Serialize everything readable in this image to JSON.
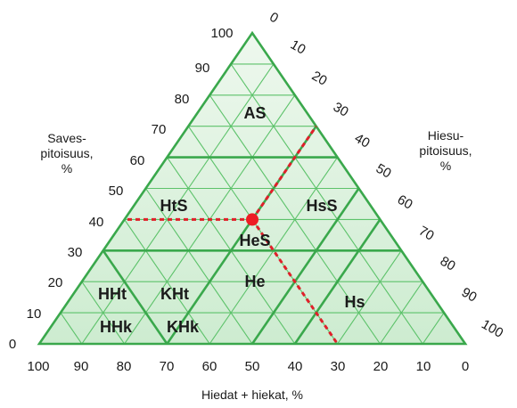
{
  "colors": {
    "grid_line": "#5cc26a",
    "grid_fill_top": "#eef8ee",
    "grid_fill_bottom": "#cdecd0",
    "boundary": "#3aa84c",
    "marker": "#ee1c24",
    "dash": "#e0202a"
  },
  "left_axis": {
    "title_lines": [
      "Saves-",
      "pitoisuus,",
      "%"
    ],
    "ticks": [
      "0",
      "10",
      "20",
      "30",
      "40",
      "50",
      "60",
      "70",
      "80",
      "90",
      "100"
    ]
  },
  "right_axis": {
    "title_lines": [
      "Hiesu-",
      "pitoisuus,",
      "%"
    ],
    "ticks": [
      "0",
      "10",
      "20",
      "30",
      "40",
      "50",
      "60",
      "70",
      "80",
      "90",
      "100"
    ]
  },
  "bottom_axis": {
    "title": "Hiedat + hiekat, %",
    "ticks": [
      "100",
      "90",
      "80",
      "70",
      "60",
      "50",
      "40",
      "30",
      "20",
      "10",
      "0"
    ]
  },
  "regions": [
    {
      "name": "region-AS",
      "label": "AS"
    },
    {
      "name": "region-HtS",
      "label": "HtS"
    },
    {
      "name": "region-HsS",
      "label": "HsS"
    },
    {
      "name": "region-HeS",
      "label": "HeS"
    },
    {
      "name": "region-He",
      "label": "He"
    },
    {
      "name": "region-Hs",
      "label": "Hs"
    },
    {
      "name": "region-HHt",
      "label": "HHt"
    },
    {
      "name": "region-KHt",
      "label": "KHt"
    },
    {
      "name": "region-HHk",
      "label": "HHk"
    },
    {
      "name": "region-KHk",
      "label": "KHk"
    }
  ],
  "sample_point": {
    "clay_percent": 40,
    "silt_percent": 30,
    "sand_percent": 30
  }
}
